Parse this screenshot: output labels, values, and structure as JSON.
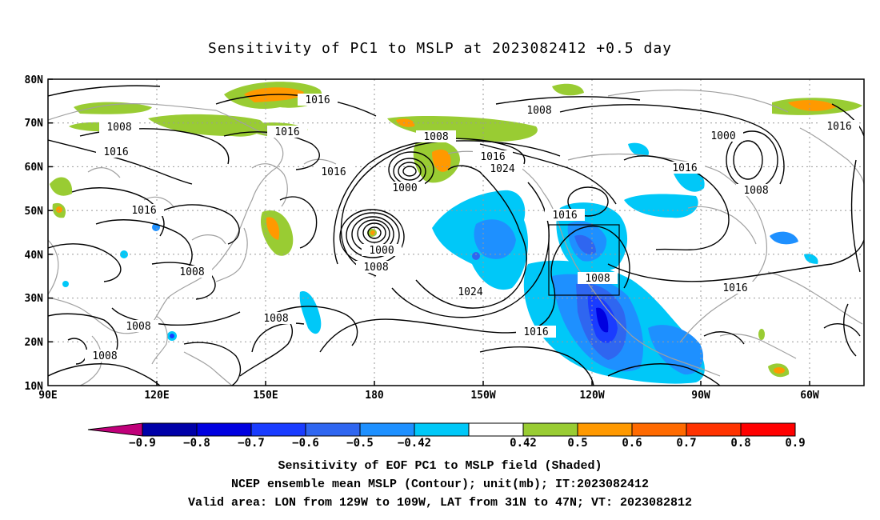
{
  "title": "Sensitivity of PC1 to MSLP at 2023082412 +0.5 day",
  "map": {
    "lat_labels": [
      "80N",
      "70N",
      "60N",
      "50N",
      "40N",
      "30N",
      "20N",
      "10N"
    ],
    "lon_labels": [
      "90E",
      "120E",
      "150E",
      "180",
      "150W",
      "120W",
      "90W",
      "60W"
    ],
    "contour_labels": [
      {
        "text": "1016"
      },
      {
        "text": "1008"
      },
      {
        "text": "1016"
      },
      {
        "text": "1016"
      },
      {
        "text": "1008"
      },
      {
        "text": "1016"
      },
      {
        "text": "1016"
      },
      {
        "text": "1016"
      },
      {
        "text": "1024"
      },
      {
        "text": "1000"
      },
      {
        "text": "1000"
      },
      {
        "text": "1008"
      },
      {
        "text": "1016"
      },
      {
        "text": "1008"
      },
      {
        "text": "1016"
      },
      {
        "text": "1016"
      },
      {
        "text": "1000"
      },
      {
        "text": "1008"
      },
      {
        "text": "1024"
      },
      {
        "text": "1008"
      },
      {
        "text": "1016"
      },
      {
        "text": "1008"
      },
      {
        "text": "1008"
      },
      {
        "text": "1008"
      },
      {
        "text": "1008"
      },
      {
        "text": "1016"
      }
    ],
    "valid_box": {
      "lon_from": "129W",
      "lon_to": "109W",
      "lat_from": "31N",
      "lat_to": "47N"
    }
  },
  "colorbar": {
    "labels": [
      "-0.9",
      "-0.8",
      "-0.7",
      "-0.6",
      "-0.5",
      "-0.42",
      "0.42",
      "0.5",
      "0.6",
      "0.7",
      "0.8",
      "0.9"
    ],
    "colors": [
      "#0000a8",
      "#0000e0",
      "#1a3cff",
      "#2f66f0",
      "#1e90ff",
      "#00c8f8",
      "#ffffff",
      "#99cc33",
      "#ff9900",
      "#ff6a00",
      "#ff3300",
      "#ff0000"
    ],
    "low_tip_color": "#c0007a",
    "high_tip_color": "#ffa0c8"
  },
  "captions": {
    "line1": "Sensitivity of EOF PC1 to MSLP field (Shaded)",
    "line2": "NCEP ensemble mean MSLP (Contour); unit(mb); IT:2023082412",
    "line3": "Valid area: LON from 129W to 109W, LAT from 31N to 47N; VT: 2023082812"
  }
}
